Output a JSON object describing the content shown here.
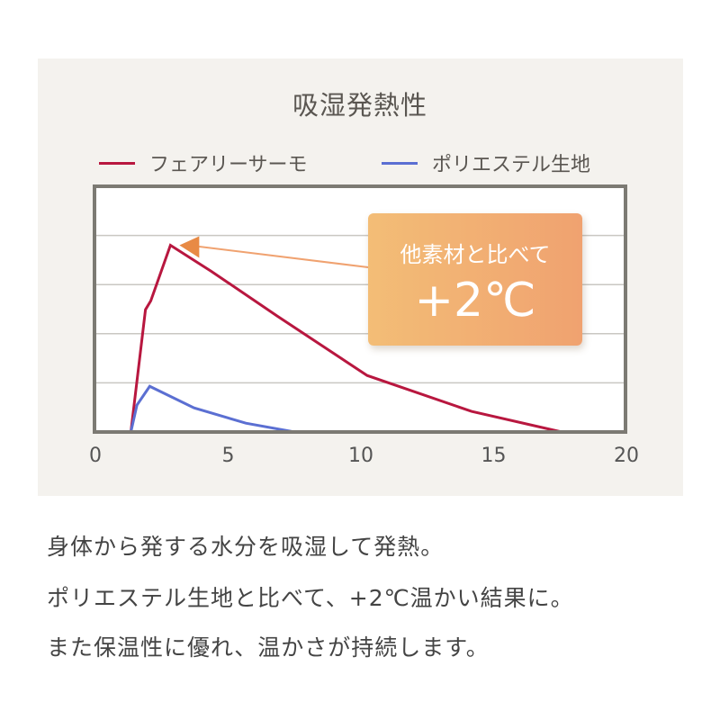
{
  "chart_data": {
    "type": "line",
    "title": "吸湿発熱性",
    "xlabel": "",
    "ylabel": "",
    "xlim": [
      0,
      20
    ],
    "ylim": [
      0,
      5
    ],
    "x_ticks": [
      "0",
      "5",
      "10",
      "15",
      "20"
    ],
    "grid": true,
    "legend_position": "top",
    "series": [
      {
        "name": "フェアリーサーモ",
        "color": "#b8173f",
        "points": [
          [
            1.37,
            0
          ],
          [
            1.92,
            2.49
          ],
          [
            2.12,
            2.67
          ],
          [
            2.86,
            3.8
          ],
          [
            4.4,
            3.27
          ],
          [
            6.88,
            2.36
          ],
          [
            10.27,
            1.15
          ],
          [
            14.2,
            0.42
          ],
          [
            17.6,
            0
          ]
        ]
      },
      {
        "name": "ポリエステル生地",
        "color": "#5b6fd2",
        "points": [
          [
            1.37,
            0
          ],
          [
            1.6,
            0.55
          ],
          [
            2.08,
            0.93
          ],
          [
            3.75,
            0.49
          ],
          [
            5.7,
            0.18
          ],
          [
            7.54,
            0
          ]
        ]
      }
    ],
    "annotation": {
      "line1": "他素材と比べて",
      "line2": "+2℃",
      "color": "#f0a270"
    }
  },
  "description": [
    "身体から発する水分を吸湿して発熱。",
    "ポリエステル生地と比べて、+2℃温かい結果に。",
    "また保温性に優れ、温かさが持続します。"
  ],
  "colors": {
    "background": "#f4f2ee",
    "frame": "#7c7a73",
    "grid": "#c9c7c2"
  }
}
